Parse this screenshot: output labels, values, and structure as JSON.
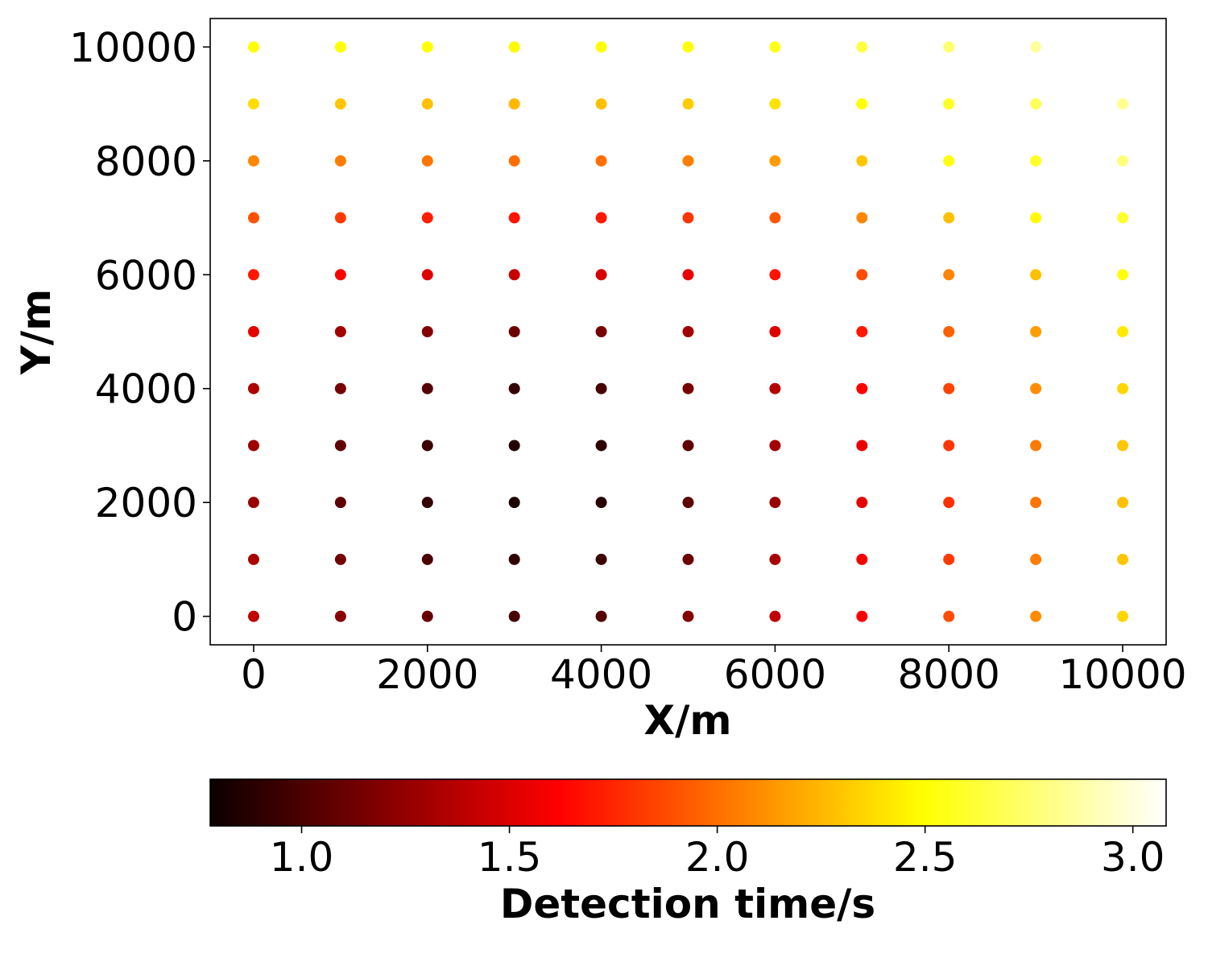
{
  "chart_data": {
    "type": "scatter",
    "title": "",
    "xlabel": "X/m",
    "ylabel": "Y/m",
    "xlim": [
      -500,
      10500
    ],
    "ylim": [
      -500,
      10500
    ],
    "x_ticks": [
      0,
      2000,
      4000,
      6000,
      8000,
      10000
    ],
    "y_ticks": [
      0,
      2000,
      4000,
      6000,
      8000,
      10000
    ],
    "x": [
      0,
      1000,
      2000,
      3000,
      4000,
      5000,
      6000,
      7000,
      8000,
      9000,
      10000
    ],
    "y": [
      0,
      1000,
      2000,
      3000,
      4000,
      5000,
      6000,
      7000,
      8000,
      9000,
      10000
    ],
    "values_by_row": [
      [
        1.38,
        1.2,
        1.08,
        0.98,
        1.02,
        1.18,
        1.38,
        1.62,
        1.88,
        2.1,
        2.35
      ],
      [
        1.3,
        1.12,
        1.0,
        0.9,
        0.95,
        1.1,
        1.3,
        1.55,
        1.82,
        2.05,
        2.3
      ],
      [
        1.25,
        1.05,
        0.92,
        0.84,
        0.88,
        1.05,
        1.25,
        1.5,
        1.78,
        2.02,
        2.28
      ],
      [
        1.26,
        1.06,
        0.94,
        0.86,
        0.9,
        1.06,
        1.28,
        1.52,
        1.8,
        2.04,
        2.3
      ],
      [
        1.32,
        1.14,
        1.02,
        0.92,
        0.98,
        1.14,
        1.34,
        1.58,
        1.85,
        2.1,
        2.36
      ],
      [
        1.5,
        1.28,
        1.18,
        1.1,
        1.14,
        1.28,
        1.48,
        1.7,
        1.95,
        2.16,
        2.42
      ],
      [
        1.7,
        1.58,
        1.48,
        1.4,
        1.45,
        1.52,
        1.68,
        1.88,
        2.08,
        2.28,
        2.52
      ],
      [
        1.9,
        1.82,
        1.72,
        1.68,
        1.7,
        1.8,
        1.92,
        2.08,
        2.28,
        2.48,
        2.6
      ],
      [
        2.08,
        2.05,
        2.02,
        2.0,
        2.0,
        2.05,
        2.15,
        2.3,
        2.52,
        2.58,
        2.78
      ],
      [
        2.38,
        2.3,
        2.28,
        2.25,
        2.28,
        2.32,
        2.4,
        2.5,
        2.58,
        2.7,
        2.82
      ],
      [
        2.5,
        2.5,
        2.5,
        2.48,
        2.5,
        2.5,
        2.55,
        2.65,
        2.75,
        2.85,
        null
      ]
    ],
    "colormap": "hot",
    "colorbar": {
      "label": "Detection time/s",
      "vmin": 0.78,
      "vmax": 3.08,
      "ticks": [
        1.0,
        1.5,
        2.0,
        2.5,
        3.0
      ],
      "tick_labels": [
        "1.0",
        "1.5",
        "2.0",
        "2.5",
        "3.0"
      ],
      "orientation": "horizontal"
    },
    "grid": false,
    "legend": "none"
  },
  "tick_labels": {
    "x": [
      "0",
      "2000",
      "4000",
      "6000",
      "8000",
      "10000"
    ],
    "y": [
      "0",
      "2000",
      "4000",
      "6000",
      "8000",
      "10000"
    ]
  }
}
